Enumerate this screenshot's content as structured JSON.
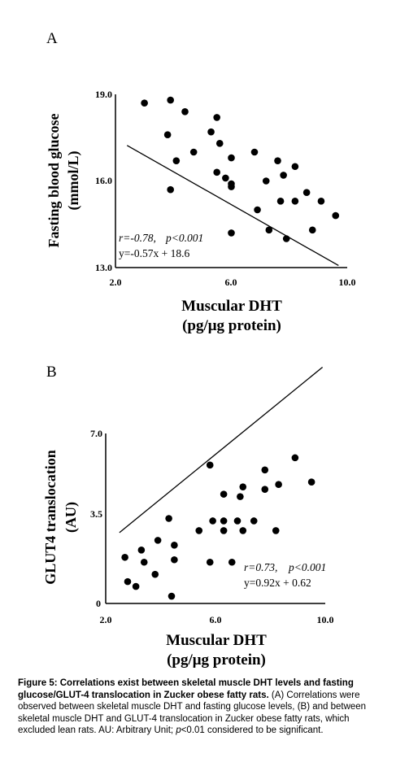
{
  "chart_data": [
    {
      "type": "scatter",
      "panel_label": "A",
      "xlabel": "Muscular DHT",
      "xlabel_unit": "(pg/μg protein)",
      "ylabel": "Fasting blood glucose",
      "ylabel_unit": "(mmol/L)",
      "xlim": [
        2.0,
        10.0
      ],
      "ylim": [
        13.0,
        19.0
      ],
      "xticks": [
        "2.0",
        "6.0",
        "10.0"
      ],
      "yticks": [
        "13.0",
        "16.0",
        "19.0"
      ],
      "annotation_r": "r=-0.78,",
      "annotation_p": "p<0.001",
      "annotation_eq": "y=-0.57x + 18.6",
      "fit": {
        "slope": -0.57,
        "intercept": 18.6,
        "x_range": [
          2.4,
          9.7
        ]
      },
      "points": [
        {
          "x": 3.0,
          "y": 18.7
        },
        {
          "x": 3.8,
          "y": 17.6
        },
        {
          "x": 3.9,
          "y": 18.8
        },
        {
          "x": 4.1,
          "y": 16.7
        },
        {
          "x": 4.4,
          "y": 18.4
        },
        {
          "x": 3.9,
          "y": 15.7
        },
        {
          "x": 4.7,
          "y": 17.0
        },
        {
          "x": 5.3,
          "y": 17.7
        },
        {
          "x": 5.5,
          "y": 18.2
        },
        {
          "x": 5.6,
          "y": 17.3
        },
        {
          "x": 5.5,
          "y": 16.3
        },
        {
          "x": 5.8,
          "y": 16.1
        },
        {
          "x": 6.0,
          "y": 16.8
        },
        {
          "x": 6.0,
          "y": 15.9
        },
        {
          "x": 6.0,
          "y": 15.8
        },
        {
          "x": 6.0,
          "y": 14.2
        },
        {
          "x": 6.8,
          "y": 17.0
        },
        {
          "x": 6.9,
          "y": 15.0
        },
        {
          "x": 7.2,
          "y": 16.0
        },
        {
          "x": 7.3,
          "y": 14.3
        },
        {
          "x": 7.6,
          "y": 16.7
        },
        {
          "x": 7.7,
          "y": 15.3
        },
        {
          "x": 7.8,
          "y": 16.2
        },
        {
          "x": 7.9,
          "y": 14.0
        },
        {
          "x": 8.2,
          "y": 16.5
        },
        {
          "x": 8.2,
          "y": 15.3
        },
        {
          "x": 8.6,
          "y": 15.6
        },
        {
          "x": 8.8,
          "y": 14.3
        },
        {
          "x": 9.1,
          "y": 15.3
        },
        {
          "x": 9.6,
          "y": 14.8
        }
      ]
    },
    {
      "type": "scatter",
      "panel_label": "B",
      "xlabel": "Muscular DHT",
      "xlabel_unit": "(pg/μg protein)",
      "ylabel": "GLUT4 translocation",
      "ylabel_unit": "(AU)",
      "xlim": [
        2.0,
        10.0
      ],
      "ylim": [
        0,
        7.0
      ],
      "xticks": [
        "2.0",
        "6.0",
        "10.0"
      ],
      "yticks": [
        "0",
        "3.5",
        "7.0"
      ],
      "annotation_r": "r=0.73,",
      "annotation_p": "p<0.001",
      "annotation_eq": "y=0.92x + 0.62",
      "fit": {
        "slope": 0.92,
        "intercept": 0.62,
        "x_range": [
          2.5,
          9.9
        ]
      },
      "points": [
        {
          "x": 2.7,
          "y": 1.9
        },
        {
          "x": 2.8,
          "y": 0.9
        },
        {
          "x": 3.1,
          "y": 0.7
        },
        {
          "x": 3.3,
          "y": 2.2
        },
        {
          "x": 3.4,
          "y": 1.7
        },
        {
          "x": 3.8,
          "y": 1.2
        },
        {
          "x": 3.9,
          "y": 2.6
        },
        {
          "x": 4.3,
          "y": 3.5
        },
        {
          "x": 4.4,
          "y": 0.3
        },
        {
          "x": 4.5,
          "y": 1.8
        },
        {
          "x": 4.5,
          "y": 2.4
        },
        {
          "x": 5.4,
          "y": 3.0
        },
        {
          "x": 5.8,
          "y": 1.7
        },
        {
          "x": 5.8,
          "y": 5.7
        },
        {
          "x": 5.9,
          "y": 3.4
        },
        {
          "x": 6.3,
          "y": 3.0
        },
        {
          "x": 6.3,
          "y": 3.4
        },
        {
          "x": 6.3,
          "y": 4.5
        },
        {
          "x": 6.6,
          "y": 1.7
        },
        {
          "x": 6.8,
          "y": 3.4
        },
        {
          "x": 6.9,
          "y": 4.4
        },
        {
          "x": 7.0,
          "y": 3.0
        },
        {
          "x": 7.0,
          "y": 4.8
        },
        {
          "x": 7.4,
          "y": 3.4
        },
        {
          "x": 7.8,
          "y": 5.5
        },
        {
          "x": 7.8,
          "y": 4.7
        },
        {
          "x": 8.2,
          "y": 3.0
        },
        {
          "x": 8.3,
          "y": 4.9
        },
        {
          "x": 8.9,
          "y": 6.0
        },
        {
          "x": 9.5,
          "y": 5.0
        }
      ]
    }
  ],
  "caption": {
    "bold": "Figure 5: Correlations exist between skeletal muscle DHT levels and fasting glucose/GLUT-4 translocation in Zucker obese fatty rats.",
    "text_1": " (A) Correlations were observed between skeletal muscle DHT and fasting glucose levels, (B) and between skeletal muscle DHT and GLUT-4 translocation in Zucker obese fatty rats, which excluded lean rats. AU: Arbitrary Unit; ",
    "text_p": "p",
    "text_2": "<0.01 considered to be significant."
  }
}
